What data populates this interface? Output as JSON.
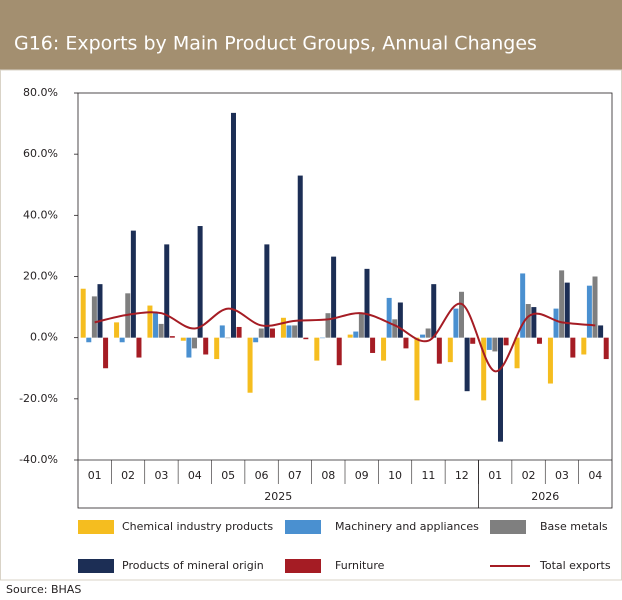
{
  "chart_data": {
    "type": "bar",
    "title": "G16: Exports by Main Product Groups, Annual Changes",
    "source": "Source: BHAS",
    "categories": [
      "01",
      "02",
      "03",
      "04",
      "05",
      "06",
      "07",
      "08",
      "09",
      "10",
      "11",
      "12",
      "01",
      "02",
      "03",
      "04"
    ],
    "groups": [
      {
        "label": "2025",
        "span": 12
      },
      {
        "label": "2026",
        "span": 4
      }
    ],
    "ylim": [
      -40,
      80
    ],
    "yticks": [
      {
        "value": -40,
        "label": "-40.0%"
      },
      {
        "value": -20,
        "label": "-20.0%"
      },
      {
        "value": 0,
        "label": "0.0%"
      },
      {
        "value": 20,
        "label": "20.0%"
      },
      {
        "value": 40,
        "label": "40.0%"
      },
      {
        "value": 60,
        "label": "60.0%"
      },
      {
        "value": 80,
        "label": "80.0%"
      }
    ],
    "series": [
      {
        "name": "Chemical industry products",
        "color": "#f5bd1f",
        "values": [
          16,
          5,
          10.5,
          -1,
          -7,
          -18,
          6.5,
          -7.5,
          1,
          -7.5,
          -20.5,
          -8,
          -20.5,
          -10,
          -15,
          -5.5
        ]
      },
      {
        "name": "Machinery and appliances",
        "color": "#4a90d0",
        "values": [
          -1.5,
          -1.5,
          8,
          -6.5,
          4,
          -1.5,
          4,
          0,
          2,
          13,
          1,
          9.5,
          -4,
          21,
          9.5,
          17
        ]
      },
      {
        "name": "Base metals",
        "color": "#7f7f7f",
        "values": [
          13.5,
          14.5,
          4.5,
          -3.5,
          0,
          3,
          4,
          8,
          8,
          6,
          3,
          15,
          -4.5,
          11,
          22,
          20
        ]
      },
      {
        "name": "Products of mineral origin",
        "color": "#1c2e55",
        "values": [
          17.5,
          35,
          30.5,
          36.5,
          73.5,
          30.5,
          53,
          26.5,
          22.5,
          11.5,
          17.5,
          -17.5,
          -34,
          10,
          18,
          4
        ]
      },
      {
        "name": "Furniture",
        "color": "#a51c24",
        "values": [
          -10,
          -6.5,
          0.5,
          -5.5,
          3.5,
          3,
          -0.5,
          -9,
          -5,
          -3.5,
          -8.5,
          -2,
          -2.5,
          -2,
          -6.5,
          -7
        ]
      },
      {
        "name": "Total exports",
        "type": "line",
        "color": "#a51c24",
        "values": [
          5,
          7.5,
          8,
          3,
          9.5,
          4,
          5.5,
          6,
          8,
          4,
          -1,
          11,
          -11,
          7,
          5,
          4
        ]
      }
    ]
  }
}
